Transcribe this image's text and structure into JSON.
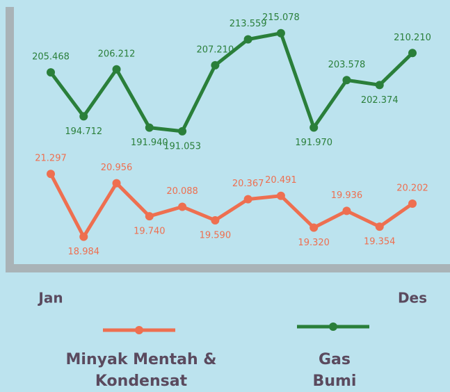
{
  "chart_data": {
    "type": "line",
    "categories": [
      "Jan",
      null,
      null,
      null,
      null,
      null,
      null,
      null,
      null,
      null,
      null,
      "Des"
    ],
    "series": [
      {
        "name": "Minyak Mentah & Kondensat",
        "color": "#ee6f50",
        "axis": "y2",
        "values": [
          21.297,
          18.984,
          20.956,
          19.74,
          20.088,
          19.59,
          20.367,
          20.491,
          19.32,
          19.936,
          19.354,
          20.202
        ],
        "value_labels": [
          "21.297",
          "18.984",
          "20.956",
          "19.740",
          "20.088",
          "19.590",
          "20.367",
          "20.491",
          "19.320",
          "19.936",
          "19.354",
          "20.202"
        ]
      },
      {
        "name": "Gas Bumi",
        "color": "#2a7f3a",
        "values": [
          205.468,
          194.712,
          206.212,
          191.94,
          191.053,
          207.21,
          213.559,
          215.078,
          191.97,
          203.578,
          202.374,
          210.21
        ],
        "value_labels": [
          "205.468",
          "194.712",
          "206.212",
          "191.940",
          "191.053",
          "207.210",
          "213.559",
          "215.078",
          "191.970",
          "203.578",
          "202.374",
          "210.210"
        ]
      }
    ],
    "ylim": [
      158,
      223.2
    ],
    "y2lim": [
      17.9,
      27.7
    ],
    "grid": false
  }
}
